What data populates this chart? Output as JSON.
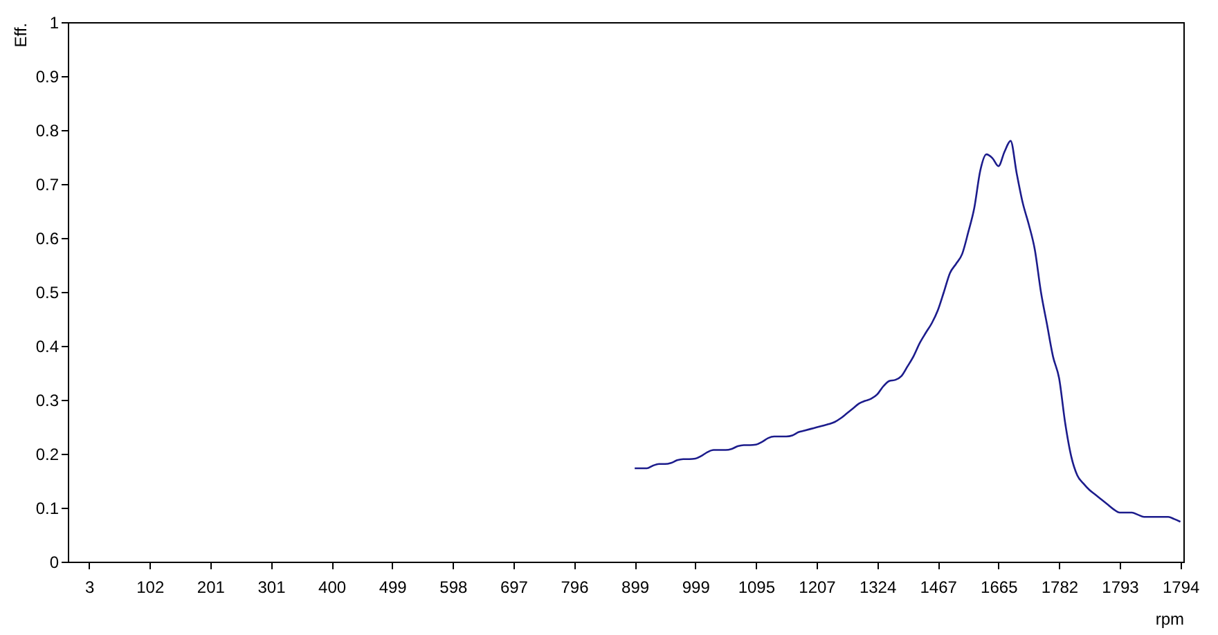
{
  "chart_data": {
    "type": "line",
    "xlabel": "rpm",
    "ylabel": "Eff.",
    "categories": [
      null,
      null,
      null,
      "3",
      null,
      null,
      null,
      null,
      null,
      null,
      null,
      null,
      null,
      "102",
      null,
      null,
      null,
      null,
      null,
      null,
      null,
      null,
      null,
      "201",
      null,
      null,
      null,
      null,
      null,
      null,
      null,
      null,
      null,
      "301",
      null,
      null,
      null,
      null,
      null,
      null,
      null,
      null,
      null,
      "400",
      null,
      null,
      null,
      null,
      null,
      null,
      null,
      null,
      null,
      "499",
      null,
      null,
      null,
      null,
      null,
      null,
      null,
      null,
      null,
      "598",
      null,
      null,
      null,
      null,
      null,
      null,
      null,
      null,
      null,
      "697",
      null,
      null,
      null,
      null,
      null,
      null,
      null,
      null,
      null,
      "796",
      null,
      null,
      null,
      null,
      null,
      null,
      null,
      null,
      null,
      "899",
      null,
      null,
      null,
      null,
      null,
      null,
      null,
      null,
      null,
      "999",
      null,
      null,
      null,
      null,
      null,
      null,
      null,
      null,
      null,
      "1095",
      null,
      null,
      null,
      null,
      null,
      null,
      null,
      null,
      null,
      "1207",
      null,
      null,
      null,
      null,
      null,
      null,
      null,
      null,
      null,
      "1324",
      null,
      null,
      null,
      null,
      null,
      null,
      null,
      null,
      null,
      "1467",
      null,
      null,
      null,
      null,
      null,
      null,
      null,
      null,
      null,
      "1665",
      null,
      null,
      null,
      null,
      null,
      null,
      null,
      null,
      null,
      "1782",
      null,
      null,
      null,
      null,
      null,
      null,
      null,
      null,
      null,
      "1793",
      null,
      null,
      null,
      null,
      null,
      null,
      null,
      null,
      null,
      "1794"
    ],
    "series": [
      {
        "color": "#1c1c8c",
        "values": [
          null,
          null,
          null,
          null,
          null,
          null,
          null,
          null,
          null,
          null,
          null,
          null,
          null,
          null,
          null,
          null,
          null,
          null,
          null,
          null,
          null,
          null,
          null,
          null,
          null,
          null,
          null,
          null,
          null,
          null,
          null,
          null,
          null,
          null,
          null,
          null,
          null,
          null,
          null,
          null,
          null,
          null,
          null,
          null,
          null,
          null,
          null,
          null,
          null,
          null,
          null,
          null,
          null,
          null,
          null,
          null,
          null,
          null,
          null,
          null,
          null,
          null,
          null,
          null,
          null,
          null,
          null,
          null,
          null,
          null,
          null,
          null,
          null,
          null,
          null,
          null,
          null,
          null,
          null,
          null,
          null,
          null,
          null,
          null,
          null,
          null,
          null,
          null,
          null,
          null,
          null,
          null,
          null,
          0.173,
          0.173,
          0.173,
          0.178,
          0.181,
          0.181,
          0.183,
          0.188,
          0.19,
          0.19,
          0.191,
          0.196,
          0.203,
          0.207,
          0.207,
          0.207,
          0.209,
          0.214,
          0.216,
          0.216,
          0.217,
          0.222,
          0.229,
          0.232,
          0.232,
          0.232,
          0.234,
          0.24,
          0.243,
          0.246,
          0.249,
          0.252,
          0.255,
          0.259,
          0.266,
          0.275,
          0.284,
          0.293,
          0.298,
          0.302,
          0.31,
          0.325,
          0.335,
          0.337,
          0.344,
          0.362,
          0.381,
          0.405,
          0.424,
          0.442,
          0.466,
          0.5,
          0.535,
          0.552,
          0.57,
          0.61,
          0.655,
          0.725,
          0.755,
          0.748,
          0.733,
          0.76,
          0.78,
          0.72,
          0.665,
          0.625,
          0.578,
          0.5,
          0.44,
          0.38,
          0.34,
          0.257,
          0.195,
          0.16,
          0.145,
          0.133,
          0.124,
          0.115,
          0.106,
          0.097,
          0.091,
          0.091,
          0.091,
          0.087,
          0.083,
          0.083,
          0.083,
          0.083,
          0.083,
          0.079,
          0.074
        ]
      }
    ],
    "ylim": [
      0,
      1
    ],
    "yticks": [
      0,
      0.1,
      0.2,
      0.3,
      0.4,
      0.5,
      0.6,
      0.7,
      0.8,
      0.9,
      1
    ]
  }
}
